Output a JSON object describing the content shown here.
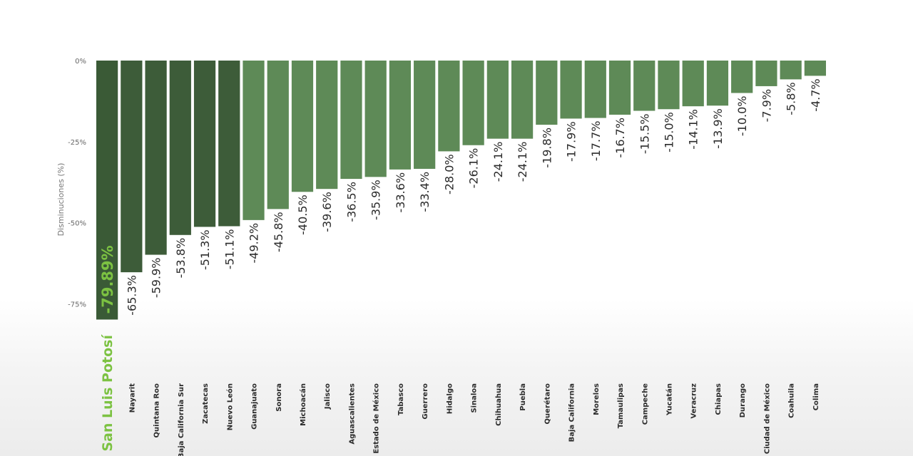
{
  "chart_data": {
    "type": "bar",
    "title": "",
    "xlabel": "",
    "ylabel": "Disminuciones (%)",
    "ylim": [
      -80,
      0
    ],
    "yticks": [
      0,
      -25,
      -50,
      -75
    ],
    "ytick_labels": [
      "0%",
      "-25%",
      "-50%",
      "-75%"
    ],
    "grid": false,
    "orientation": "vertical",
    "categories": [
      "San Luis Potosí",
      "Nayarit",
      "Quintana Roo",
      "Baja California Sur",
      "Zacatecas",
      "Nuevo León",
      "Guanajuato",
      "Sonora",
      "Michoacán",
      "Jalisco",
      "Aguascalientes",
      "Estado de México",
      "Tabasco",
      "Guerrero",
      "Hidalgo",
      "Sinaloa",
      "Chihuahua",
      "Puebla",
      "Querétaro",
      "Baja California",
      "Morelos",
      "Tamaulipas",
      "Campeche",
      "Yucatán",
      "Veracruz",
      "Chiapas",
      "Durango",
      "Ciudad de México",
      "Coahuila",
      "Colima"
    ],
    "values": [
      -79.89,
      -65.3,
      -59.9,
      -53.8,
      -51.3,
      -51.1,
      -49.2,
      -45.8,
      -40.5,
      -39.6,
      -36.5,
      -35.9,
      -33.6,
      -33.4,
      -28.0,
      -26.1,
      -24.1,
      -24.1,
      -19.8,
      -17.9,
      -17.7,
      -16.7,
      -15.5,
      -15.0,
      -14.1,
      -13.9,
      -10.0,
      -7.9,
      -5.8,
      -4.7
    ],
    "value_labels": [
      "-79.89%",
      "-65.3%",
      "-59.9%",
      "-53.8%",
      "-51.3%",
      "-51.1%",
      "-49.2%",
      "-45.8%",
      "-40.5%",
      "-39.6%",
      "-36.5%",
      "-35.9%",
      "-33.6%",
      "-33.4%",
      "-28.0%",
      "-26.1%",
      "-24.1%",
      "-24.1%",
      "-19.8%",
      "-17.9%",
      "-17.7%",
      "-16.7%",
      "-15.5%",
      "-15.0%",
      "-14.1%",
      "-13.9%",
      "-10.0%",
      "-7.9%",
      "-5.8%",
      "-4.7%"
    ],
    "highlight_index": 0,
    "colors": {
      "highlight_bar": "#3a5a36",
      "top_bars": "#3d5c39",
      "other_bars": "#5e8a57",
      "highlight_text": "#7cc242"
    }
  }
}
